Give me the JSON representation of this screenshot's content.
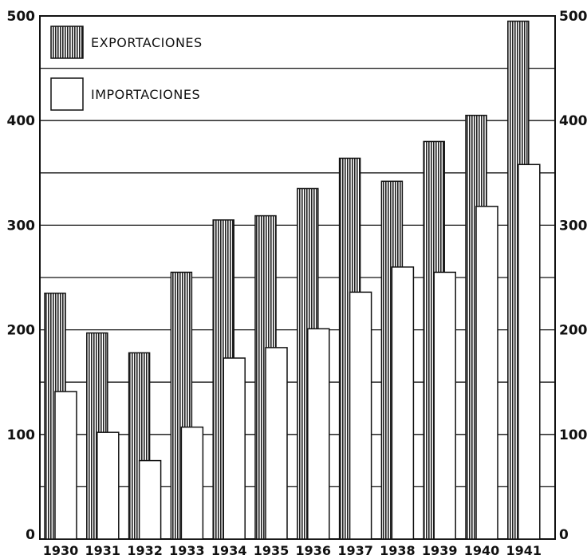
{
  "chart_data": {
    "type": "bar",
    "categories": [
      "1930",
      "1931",
      "1932",
      "1933",
      "1934",
      "1935",
      "1936",
      "1937",
      "1938",
      "1939",
      "1940",
      "1941"
    ],
    "series": [
      {
        "name": "EXPORTACIONES",
        "values": [
          235,
          197,
          178,
          255,
          305,
          309,
          335,
          364,
          342,
          380,
          405,
          495
        ],
        "pattern": "vertical-hatch",
        "color": "#555555"
      },
      {
        "name": "IMPORTACIONES",
        "values": [
          141,
          102,
          75,
          107,
          173,
          183,
          201,
          236,
          260,
          255,
          318,
          358
        ],
        "pattern": "solid",
        "color": "#ffffff"
      }
    ],
    "ylim": [
      0,
      500
    ],
    "yticks": [
      0,
      100,
      200,
      300,
      400,
      500
    ],
    "ytick_labels": [
      "0",
      "100",
      "200",
      "300",
      "400",
      "500"
    ],
    "grid": true,
    "grid_step": 50,
    "legend": "top-left",
    "axis_labels_both_sides": true,
    "title": "",
    "xlabel": "",
    "ylabel": ""
  }
}
